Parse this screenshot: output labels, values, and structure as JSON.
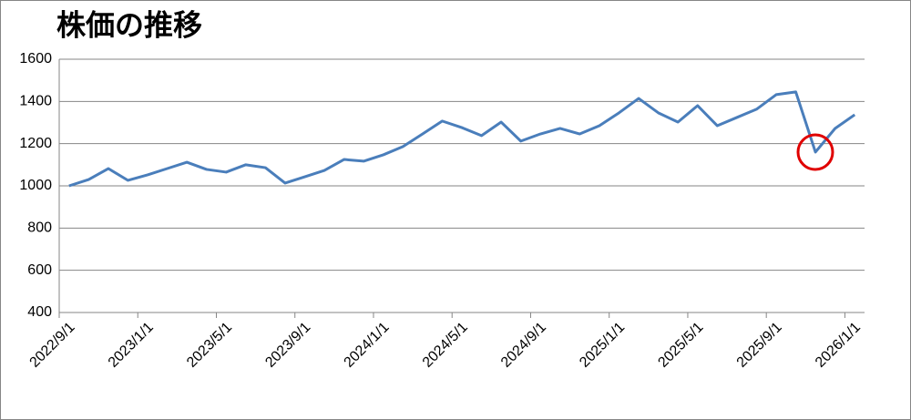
{
  "chart_data": {
    "type": "line",
    "title": "株価の推移",
    "categories": [
      "2022/9/1",
      null,
      null,
      null,
      "2023/1/1",
      null,
      null,
      null,
      "2023/5/1",
      null,
      null,
      null,
      "2023/9/1",
      null,
      null,
      null,
      "2024/1/1",
      null,
      null,
      null,
      "2024/5/1",
      null,
      null,
      null,
      "2024/9/1",
      null,
      null,
      null,
      "2025/1/1",
      null,
      null,
      null,
      "2025/5/1",
      null,
      null,
      null,
      "2025/9/1",
      null,
      null,
      null,
      "2026/1/1"
    ],
    "values": [
      1000,
      1030,
      1082,
      1026,
      1052,
      1082,
      1112,
      1078,
      1065,
      1100,
      1086,
      1013,
      1043,
      1073,
      1125,
      1117,
      1147,
      1186,
      1246,
      1307,
      1276,
      1238,
      1302,
      1212,
      1246,
      1272,
      1246,
      1285,
      1346,
      1414,
      1346,
      1302,
      1380,
      1285,
      1324,
      1363,
      1432,
      1445,
      1160,
      1272,
      1337
    ],
    "color": "#4a7ebb",
    "ylim": [
      400,
      1600
    ],
    "yticks": [
      400,
      600,
      800,
      1000,
      1200,
      1400,
      1600
    ],
    "grid": true
  }
}
